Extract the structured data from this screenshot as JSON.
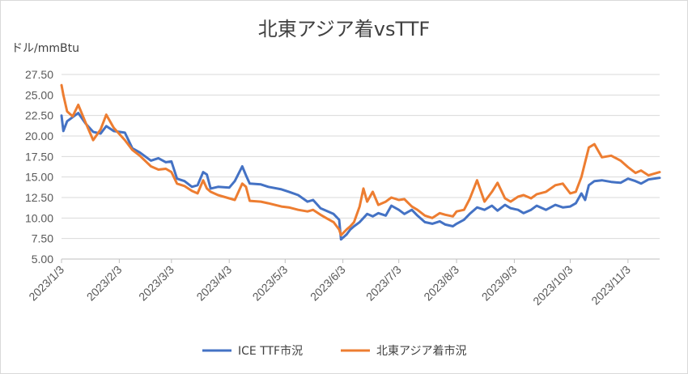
{
  "chart_data": {
    "type": "line",
    "title": "北東アジア着vsTTF",
    "ylabel": "ドル/mmBtu",
    "ylim": [
      5.0,
      27.5
    ],
    "yticks": [
      "27.50",
      "25.00",
      "22.50",
      "20.00",
      "17.50",
      "15.00",
      "12.50",
      "10.00",
      "7.50",
      "5.00"
    ],
    "xlim": [
      "2023-01-03",
      "2023-11-20"
    ],
    "xticks": [
      "2023/1/3",
      "2023/2/3",
      "2023/3/3",
      "2023/4/3",
      "2023/5/3",
      "2023/6/3",
      "2023/7/3",
      "2023/8/3",
      "2023/9/3",
      "2023/10/3",
      "2023/11/3"
    ],
    "grid": true,
    "legend_position": "bottom",
    "series": [
      {
        "name": "ICE TTF市況",
        "color": "#4472C4",
        "points": [
          [
            "2023-01-03",
            22.5
          ],
          [
            "2023-01-04",
            20.6
          ],
          [
            "2023-01-06",
            21.8
          ],
          [
            "2023-01-09",
            22.3
          ],
          [
            "2023-01-12",
            22.8
          ],
          [
            "2023-01-16",
            21.5
          ],
          [
            "2023-01-20",
            20.5
          ],
          [
            "2023-01-24",
            20.3
          ],
          [
            "2023-01-27",
            21.2
          ],
          [
            "2023-01-31",
            20.6
          ],
          [
            "2023-02-06",
            20.4
          ],
          [
            "2023-02-10",
            18.5
          ],
          [
            "2023-02-14",
            18.0
          ],
          [
            "2023-02-20",
            17.0
          ],
          [
            "2023-02-24",
            17.3
          ],
          [
            "2023-02-28",
            16.8
          ],
          [
            "2023-03-03",
            16.9
          ],
          [
            "2023-03-06",
            14.8
          ],
          [
            "2023-03-10",
            14.5
          ],
          [
            "2023-03-14",
            13.8
          ],
          [
            "2023-03-17",
            14.0
          ],
          [
            "2023-03-20",
            15.6
          ],
          [
            "2023-03-22",
            15.3
          ],
          [
            "2023-03-24",
            13.6
          ],
          [
            "2023-03-28",
            13.8
          ],
          [
            "2023-04-03",
            13.7
          ],
          [
            "2023-04-06",
            14.5
          ],
          [
            "2023-04-10",
            16.3
          ],
          [
            "2023-04-12",
            15.2
          ],
          [
            "2023-04-14",
            14.2
          ],
          [
            "2023-04-20",
            14.1
          ],
          [
            "2023-04-24",
            13.8
          ],
          [
            "2023-05-01",
            13.5
          ],
          [
            "2023-05-05",
            13.2
          ],
          [
            "2023-05-10",
            12.8
          ],
          [
            "2023-05-15",
            12.0
          ],
          [
            "2023-05-18",
            12.2
          ],
          [
            "2023-05-22",
            11.2
          ],
          [
            "2023-05-25",
            10.9
          ],
          [
            "2023-05-29",
            10.5
          ],
          [
            "2023-06-01",
            9.8
          ],
          [
            "2023-06-02",
            7.4
          ],
          [
            "2023-06-05",
            8.0
          ],
          [
            "2023-06-07",
            8.6
          ],
          [
            "2023-06-09",
            9.0
          ],
          [
            "2023-06-12",
            9.5
          ],
          [
            "2023-06-14",
            10.0
          ],
          [
            "2023-06-16",
            10.5
          ],
          [
            "2023-06-19",
            10.2
          ],
          [
            "2023-06-22",
            10.6
          ],
          [
            "2023-06-26",
            10.3
          ],
          [
            "2023-06-29",
            11.5
          ],
          [
            "2023-07-03",
            11.0
          ],
          [
            "2023-07-06",
            10.5
          ],
          [
            "2023-07-10",
            11.0
          ],
          [
            "2023-07-13",
            10.3
          ],
          [
            "2023-07-17",
            9.5
          ],
          [
            "2023-07-21",
            9.3
          ],
          [
            "2023-07-25",
            9.6
          ],
          [
            "2023-07-28",
            9.2
          ],
          [
            "2023-08-01",
            9.0
          ],
          [
            "2023-08-03",
            9.3
          ],
          [
            "2023-08-07",
            9.8
          ],
          [
            "2023-08-10",
            10.5
          ],
          [
            "2023-08-14",
            11.3
          ],
          [
            "2023-08-18",
            11.0
          ],
          [
            "2023-08-22",
            11.5
          ],
          [
            "2023-08-25",
            10.9
          ],
          [
            "2023-08-29",
            11.6
          ],
          [
            "2023-09-01",
            11.2
          ],
          [
            "2023-09-05",
            11.0
          ],
          [
            "2023-09-08",
            10.6
          ],
          [
            "2023-09-12",
            11.0
          ],
          [
            "2023-09-15",
            11.5
          ],
          [
            "2023-09-20",
            11.0
          ],
          [
            "2023-09-25",
            11.6
          ],
          [
            "2023-09-29",
            11.3
          ],
          [
            "2023-10-03",
            11.4
          ],
          [
            "2023-10-06",
            11.8
          ],
          [
            "2023-10-09",
            13.0
          ],
          [
            "2023-10-11",
            12.2
          ],
          [
            "2023-10-13",
            14.0
          ],
          [
            "2023-10-16",
            14.5
          ],
          [
            "2023-10-20",
            14.6
          ],
          [
            "2023-10-25",
            14.4
          ],
          [
            "2023-10-30",
            14.3
          ],
          [
            "2023-11-03",
            14.8
          ],
          [
            "2023-11-07",
            14.5
          ],
          [
            "2023-11-10",
            14.2
          ],
          [
            "2023-11-14",
            14.7
          ],
          [
            "2023-11-20",
            14.9
          ]
        ]
      },
      {
        "name": "北東アジア着市況",
        "color": "#ED7D31",
        "points": [
          [
            "2023-01-03",
            26.2
          ],
          [
            "2023-01-04",
            25.0
          ],
          [
            "2023-01-06",
            23.0
          ],
          [
            "2023-01-09",
            22.4
          ],
          [
            "2023-01-12",
            23.8
          ],
          [
            "2023-01-16",
            21.6
          ],
          [
            "2023-01-20",
            19.5
          ],
          [
            "2023-01-24",
            20.8
          ],
          [
            "2023-01-27",
            22.6
          ],
          [
            "2023-01-31",
            21.0
          ],
          [
            "2023-02-06",
            19.5
          ],
          [
            "2023-02-10",
            18.3
          ],
          [
            "2023-02-14",
            17.6
          ],
          [
            "2023-02-20",
            16.3
          ],
          [
            "2023-02-24",
            15.9
          ],
          [
            "2023-02-28",
            16.0
          ],
          [
            "2023-03-03",
            15.6
          ],
          [
            "2023-03-06",
            14.2
          ],
          [
            "2023-03-10",
            13.9
          ],
          [
            "2023-03-14",
            13.3
          ],
          [
            "2023-03-17",
            13.0
          ],
          [
            "2023-03-20",
            14.6
          ],
          [
            "2023-03-22",
            13.6
          ],
          [
            "2023-03-24",
            13.2
          ],
          [
            "2023-03-28",
            12.8
          ],
          [
            "2023-04-03",
            12.4
          ],
          [
            "2023-04-06",
            12.2
          ],
          [
            "2023-04-10",
            14.2
          ],
          [
            "2023-04-12",
            13.8
          ],
          [
            "2023-04-14",
            12.1
          ],
          [
            "2023-04-20",
            12.0
          ],
          [
            "2023-04-24",
            11.8
          ],
          [
            "2023-05-01",
            11.4
          ],
          [
            "2023-05-05",
            11.3
          ],
          [
            "2023-05-10",
            11.0
          ],
          [
            "2023-05-15",
            10.8
          ],
          [
            "2023-05-18",
            11.0
          ],
          [
            "2023-05-22",
            10.4
          ],
          [
            "2023-05-25",
            10.0
          ],
          [
            "2023-05-29",
            9.5
          ],
          [
            "2023-06-01",
            8.6
          ],
          [
            "2023-06-02",
            7.9
          ],
          [
            "2023-06-05",
            8.6
          ],
          [
            "2023-06-07",
            9.0
          ],
          [
            "2023-06-09",
            9.5
          ],
          [
            "2023-06-12",
            11.4
          ],
          [
            "2023-06-14",
            13.6
          ],
          [
            "2023-06-16",
            12.0
          ],
          [
            "2023-06-19",
            13.2
          ],
          [
            "2023-06-22",
            11.6
          ],
          [
            "2023-06-26",
            12.0
          ],
          [
            "2023-06-29",
            12.5
          ],
          [
            "2023-07-03",
            12.2
          ],
          [
            "2023-07-06",
            12.3
          ],
          [
            "2023-07-10",
            11.4
          ],
          [
            "2023-07-13",
            11.0
          ],
          [
            "2023-07-17",
            10.3
          ],
          [
            "2023-07-21",
            10.0
          ],
          [
            "2023-07-25",
            10.6
          ],
          [
            "2023-07-28",
            10.4
          ],
          [
            "2023-08-01",
            10.2
          ],
          [
            "2023-08-03",
            10.8
          ],
          [
            "2023-08-07",
            11.0
          ],
          [
            "2023-08-10",
            12.3
          ],
          [
            "2023-08-14",
            14.6
          ],
          [
            "2023-08-18",
            12.0
          ],
          [
            "2023-08-22",
            13.2
          ],
          [
            "2023-08-25",
            14.3
          ],
          [
            "2023-08-29",
            12.4
          ],
          [
            "2023-09-01",
            12.0
          ],
          [
            "2023-09-05",
            12.6
          ],
          [
            "2023-09-08",
            12.8
          ],
          [
            "2023-09-12",
            12.4
          ],
          [
            "2023-09-15",
            12.9
          ],
          [
            "2023-09-20",
            13.2
          ],
          [
            "2023-09-25",
            14.0
          ],
          [
            "2023-09-29",
            14.2
          ],
          [
            "2023-10-03",
            13.0
          ],
          [
            "2023-10-06",
            13.2
          ],
          [
            "2023-10-09",
            15.0
          ],
          [
            "2023-10-11",
            16.8
          ],
          [
            "2023-10-13",
            18.6
          ],
          [
            "2023-10-16",
            19.0
          ],
          [
            "2023-10-20",
            17.4
          ],
          [
            "2023-10-25",
            17.6
          ],
          [
            "2023-10-30",
            17.0
          ],
          [
            "2023-11-03",
            16.2
          ],
          [
            "2023-11-07",
            15.5
          ],
          [
            "2023-11-10",
            15.8
          ],
          [
            "2023-11-14",
            15.2
          ],
          [
            "2023-11-20",
            15.6
          ]
        ]
      }
    ]
  }
}
